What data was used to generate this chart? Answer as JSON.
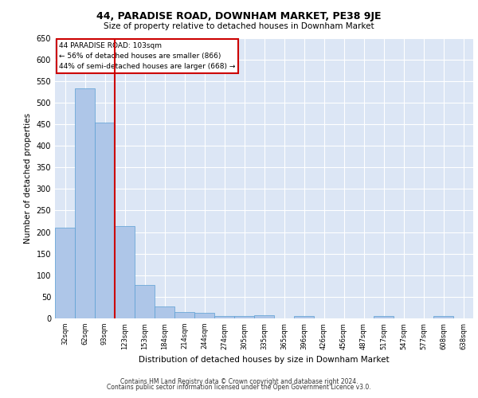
{
  "title": "44, PARADISE ROAD, DOWNHAM MARKET, PE38 9JE",
  "subtitle": "Size of property relative to detached houses in Downham Market",
  "xlabel": "Distribution of detached houses by size in Downham Market",
  "ylabel": "Number of detached properties",
  "categories": [
    "32sqm",
    "62sqm",
    "93sqm",
    "123sqm",
    "153sqm",
    "184sqm",
    "214sqm",
    "244sqm",
    "274sqm",
    "305sqm",
    "335sqm",
    "365sqm",
    "396sqm",
    "426sqm",
    "456sqm",
    "487sqm",
    "517sqm",
    "547sqm",
    "577sqm",
    "608sqm",
    "638sqm"
  ],
  "values": [
    210,
    533,
    453,
    213,
    78,
    27,
    15,
    12,
    5,
    5,
    8,
    0,
    6,
    0,
    0,
    0,
    5,
    0,
    0,
    5,
    0
  ],
  "bar_color": "#aec6e8",
  "bar_edge_color": "#5a9fd4",
  "background_color": "#dce6f5",
  "grid_color": "#ffffff",
  "annotation_text_line1": "44 PARADISE ROAD: 103sqm",
  "annotation_text_line2": "← 56% of detached houses are smaller (866)",
  "annotation_text_line3": "44% of semi-detached houses are larger (668) →",
  "annotation_box_color": "#ffffff",
  "annotation_box_edge": "#cc0000",
  "vline_color": "#cc0000",
  "ylim": [
    0,
    650
  ],
  "yticks": [
    0,
    50,
    100,
    150,
    200,
    250,
    300,
    350,
    400,
    450,
    500,
    550,
    600,
    650
  ],
  "footer_line1": "Contains HM Land Registry data © Crown copyright and database right 2024.",
  "footer_line2": "Contains public sector information licensed under the Open Government Licence v3.0."
}
